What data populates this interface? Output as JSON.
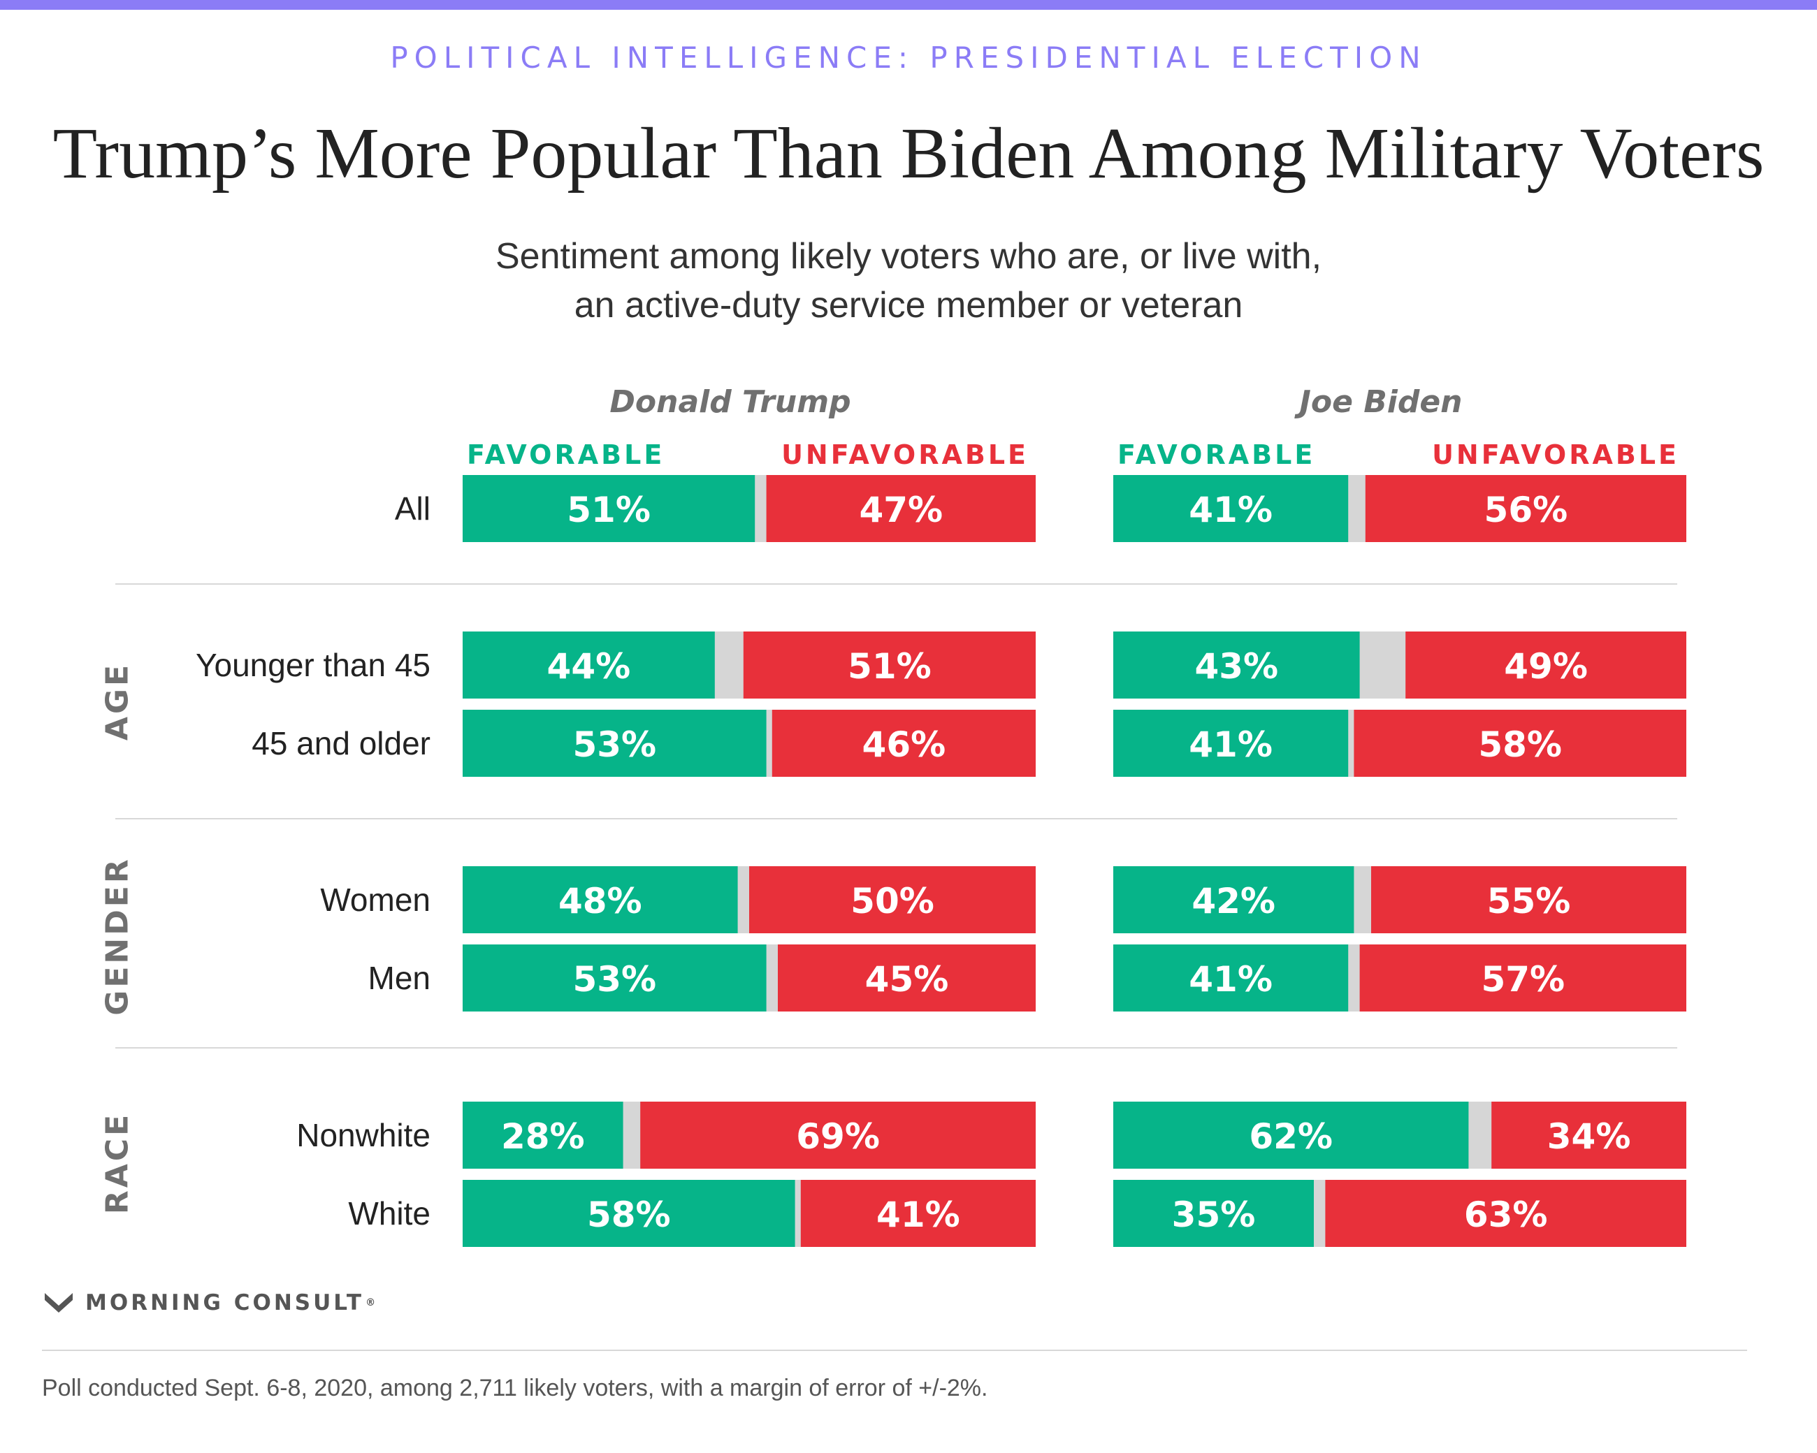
{
  "header": {
    "kicker": "POLITICAL INTELLIGENCE: PRESIDENTIAL ELECTION",
    "title": "Trump’s More Popular Than Biden Among Military Voters",
    "subtitle_line1": "Sentiment among likely voters who are, or live with,",
    "subtitle_line2": "an active-duty service member or veteran"
  },
  "chart_data": {
    "type": "bar",
    "orientation": "horizontal",
    "stacked": true,
    "x_range": [
      0,
      100
    ],
    "panels": [
      {
        "name": "Donald Trump",
        "favorable_label": "FAVORABLE",
        "unfavorable_label": "UNFAVORABLE"
      },
      {
        "name": "Joe Biden",
        "favorable_label": "FAVORABLE",
        "unfavorable_label": "UNFAVORABLE"
      }
    ],
    "groups": [
      {
        "label": "",
        "rows": [
          {
            "label": "All",
            "values": [
              [
                51,
                47
              ],
              [
                41,
                56
              ]
            ]
          }
        ]
      },
      {
        "label": "AGE",
        "rows": [
          {
            "label": "Younger than 45",
            "values": [
              [
                44,
                51
              ],
              [
                43,
                49
              ]
            ]
          },
          {
            "label": "45 and older",
            "values": [
              [
                53,
                46
              ],
              [
                41,
                58
              ]
            ]
          }
        ]
      },
      {
        "label": "GENDER",
        "rows": [
          {
            "label": "Women",
            "values": [
              [
                48,
                50
              ],
              [
                42,
                55
              ]
            ]
          },
          {
            "label": "Men",
            "values": [
              [
                53,
                45
              ],
              [
                41,
                57
              ]
            ]
          }
        ]
      },
      {
        "label": "RACE",
        "rows": [
          {
            "label": "Nonwhite",
            "values": [
              [
                28,
                69
              ],
              [
                62,
                34
              ]
            ]
          },
          {
            "label": "White",
            "values": [
              [
                58,
                41
              ],
              [
                35,
                63
              ]
            ]
          }
        ]
      }
    ],
    "colors": {
      "favorable": "#06b489",
      "unfavorable": "#e8303a",
      "neither": "#d6d6d6"
    }
  },
  "footer": {
    "brand": "MORNING CONSULT",
    "brand_mark": "®",
    "note": "Poll conducted Sept. 6-8, 2020, among 2,711 likely voters, with a margin of error of +/-2%."
  }
}
